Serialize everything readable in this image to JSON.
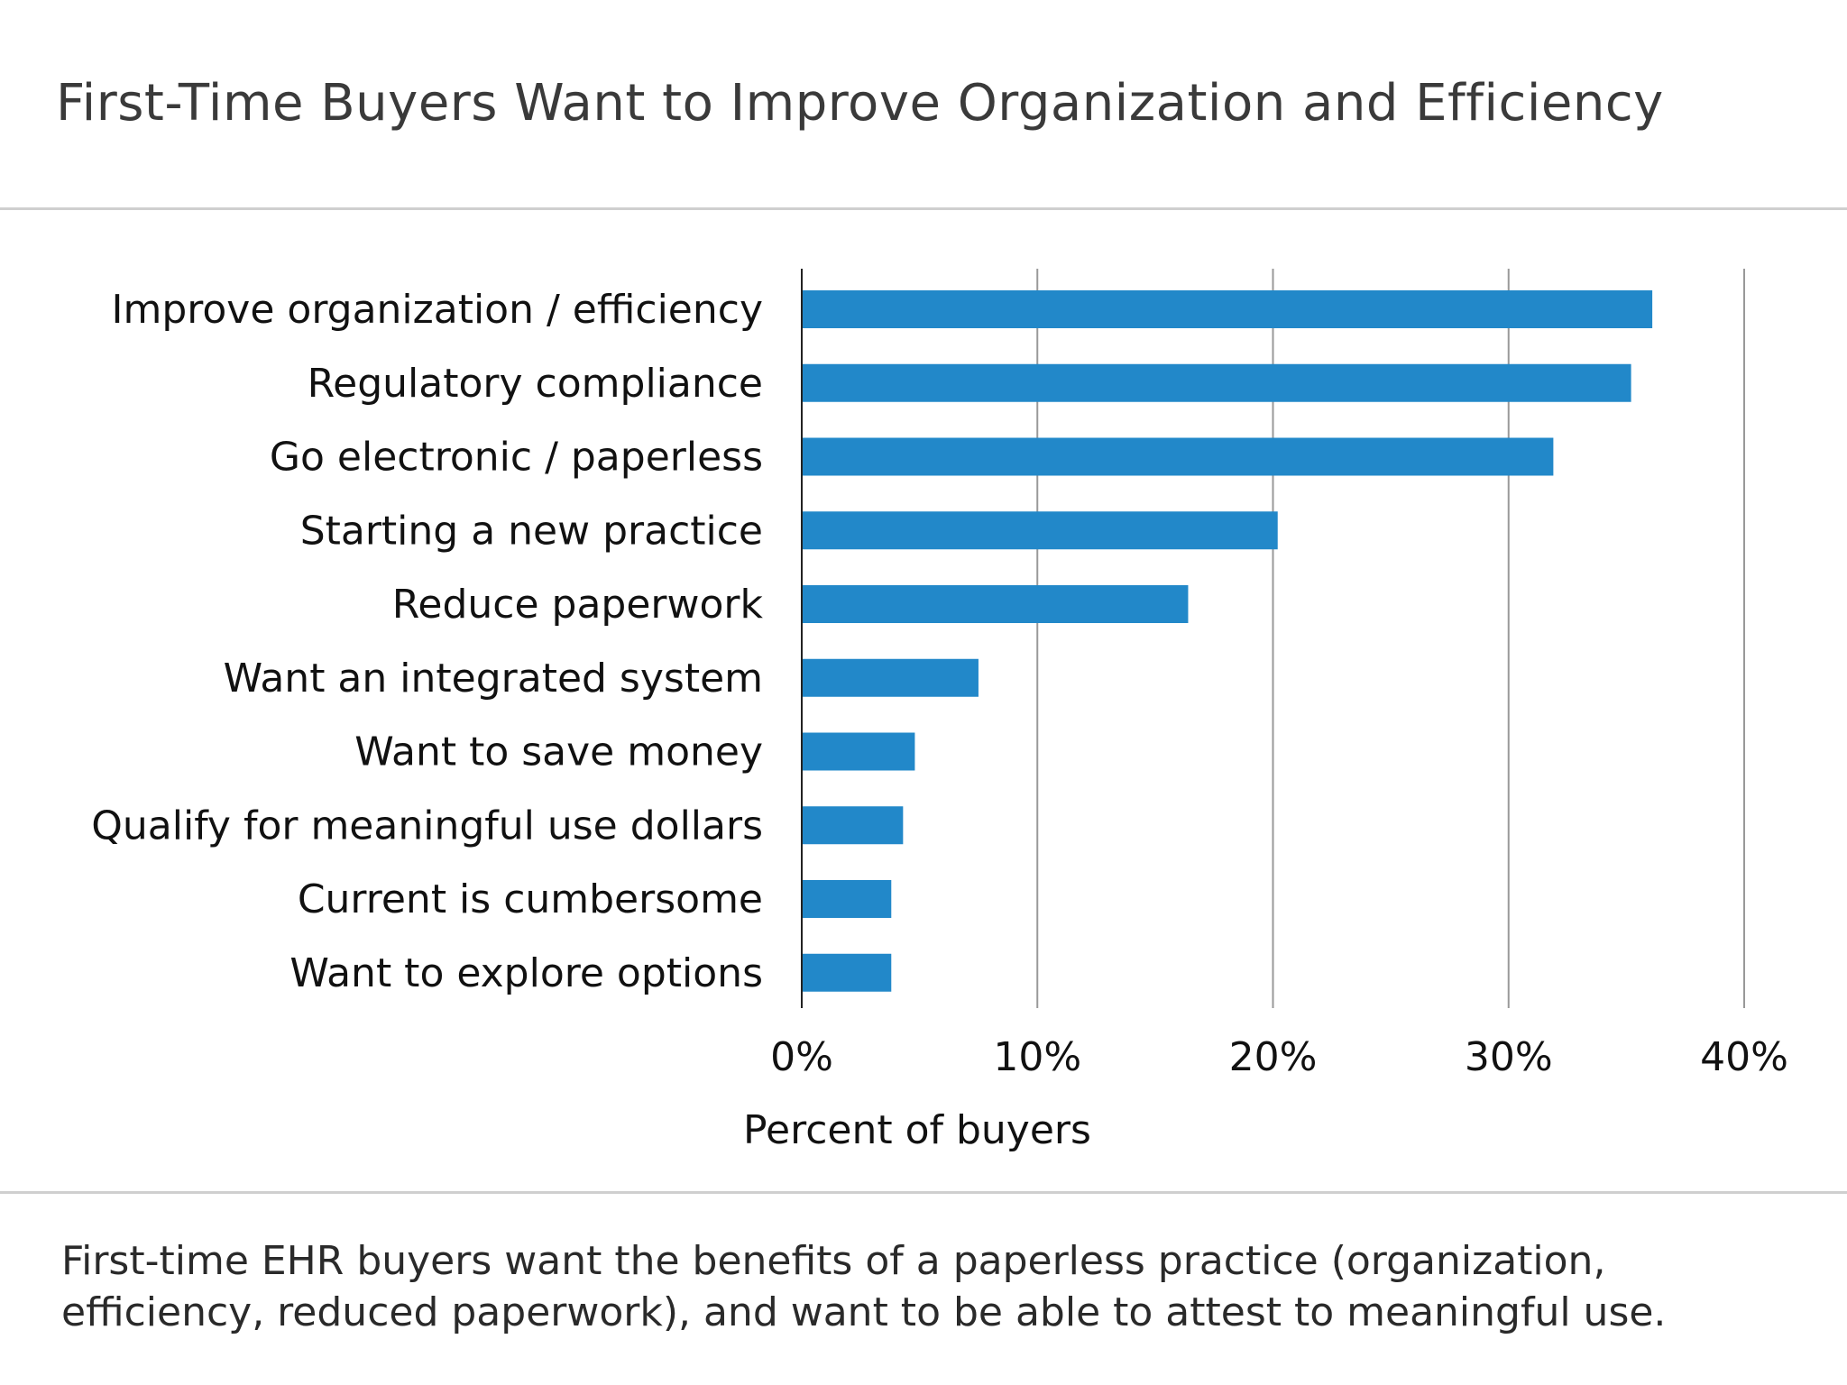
{
  "title": "First-Time Buyers Want to Improve Organization and Efficiency",
  "caption": "First-time EHR buyers want the benefits of a paperless practice (organization, efficiency, reduced paperwork), and want to be able to attest to meaningful use.",
  "colors": {
    "bar": "#2288c9",
    "gridline": "#999999",
    "axis": "#222222",
    "divider": "#cfcfcf"
  },
  "chart_data": {
    "type": "bar",
    "orientation": "horizontal",
    "title": "First-Time Buyers Want to Improve Organization and Efficiency",
    "xlabel": "Percent of buyers",
    "ylabel": "",
    "categories": [
      "Improve organization / efficiency",
      "Regulatory compliance",
      "Go electronic / paperless",
      "Starting a new practice",
      "Reduce paperwork",
      "Want an integrated system",
      "Want to save money",
      "Qualify for meaningful use dollars",
      "Current is cumbersome",
      "Want to explore options"
    ],
    "values": [
      36.1,
      35.2,
      31.9,
      20.2,
      16.4,
      7.5,
      4.8,
      4.3,
      3.8,
      3.8
    ],
    "xlim": [
      0,
      40
    ],
    "xticks": [
      "0%",
      "10%",
      "20%",
      "30%",
      "40%"
    ],
    "grid": "vertical",
    "legend": "none"
  }
}
